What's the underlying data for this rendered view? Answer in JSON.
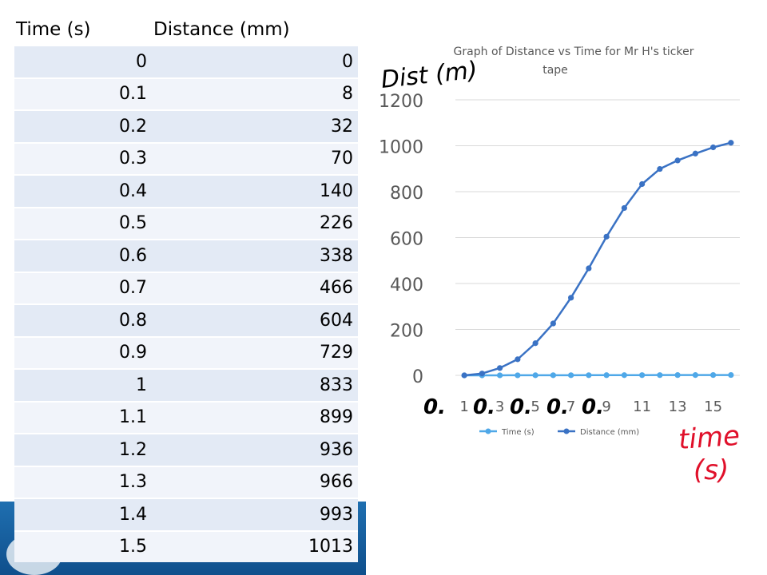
{
  "table": {
    "headers": [
      "Time (s)",
      "Distance (mm)"
    ],
    "rows": [
      [
        "0",
        "0"
      ],
      [
        "0.1",
        "8"
      ],
      [
        "0.2",
        "32"
      ],
      [
        "0.3",
        "70"
      ],
      [
        "0.4",
        "140"
      ],
      [
        "0.5",
        "226"
      ],
      [
        "0.6",
        "338"
      ],
      [
        "0.7",
        "466"
      ],
      [
        "0.8",
        "604"
      ],
      [
        "0.9",
        "729"
      ],
      [
        "1",
        "833"
      ],
      [
        "1.1",
        "899"
      ],
      [
        "1.2",
        "936"
      ],
      [
        "1.3",
        "966"
      ],
      [
        "1.4",
        "993"
      ],
      [
        "1.5",
        "1013"
      ]
    ]
  },
  "chart_data": {
    "type": "line",
    "title": "Graph of Distance vs Time for Mr H's ticker tape",
    "x": [
      1,
      2,
      3,
      4,
      5,
      6,
      7,
      8,
      9,
      10,
      11,
      12,
      13,
      14,
      15,
      16
    ],
    "x_tick_labels": [
      "1",
      "3",
      "5",
      "7",
      "9",
      "11",
      "13",
      "15"
    ],
    "x_tick_positions": [
      1,
      3,
      5,
      7,
      9,
      11,
      13,
      15
    ],
    "y_ticks": [
      0,
      200,
      400,
      600,
      800,
      1000,
      1200
    ],
    "ylim": [
      0,
      1200
    ],
    "series": [
      {
        "name": "Time (s)",
        "color": "#4fa8e8",
        "values": [
          0,
          0.1,
          0.2,
          0.3,
          0.4,
          0.5,
          0.6,
          0.7,
          0.8,
          0.9,
          1,
          1.1,
          1.2,
          1.3,
          1.4,
          1.5
        ]
      },
      {
        "name": "Distance (mm)",
        "color": "#3a72c4",
        "values": [
          0,
          8,
          32,
          70,
          140,
          226,
          338,
          466,
          604,
          729,
          833,
          899,
          936,
          966,
          993,
          1013
        ]
      }
    ],
    "legend_position": "bottom",
    "grid": true
  },
  "handwriting": {
    "y_axis_label": "Dist (m)",
    "x_axis_label_line1": "time",
    "x_axis_label_line2": "(s)",
    "x_tick_prefixes": [
      "0.",
      "0.",
      "0.",
      "0.",
      "0."
    ],
    "ink_black": "#000000",
    "ink_red": "#e0102a"
  }
}
